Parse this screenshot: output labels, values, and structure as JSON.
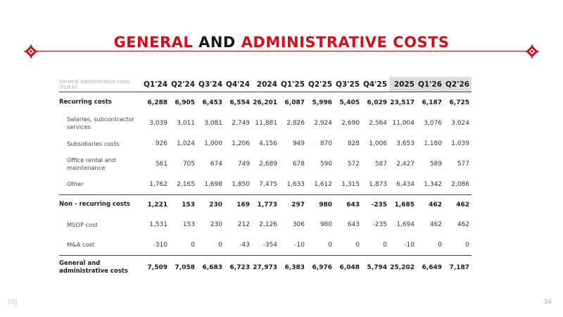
{
  "title": {
    "part1": "General",
    "part2": "and",
    "part3": "Administrative costs"
  },
  "table": {
    "header_label": "General administrative costs (PLN k)",
    "columns": [
      "Q1'24",
      "Q2'24",
      "Q3'24",
      "Q4'24",
      "2024",
      "Q1'25",
      "Q2'25",
      "Q3'25",
      "Q4'25",
      "2025",
      "Q1'26",
      "Q2'26"
    ],
    "shaded_columns": [
      9,
      10,
      11
    ],
    "rows": [
      {
        "label": "Recurring costs",
        "type": "group",
        "values": [
          "6,288",
          "6,905",
          "6,453",
          "6,554",
          "26,201",
          "6,087",
          "5,996",
          "5,405",
          "6,029",
          "23,517",
          "6,187",
          "6,725"
        ]
      },
      {
        "label": "Salaries, subcontractor services",
        "type": "sub",
        "values": [
          "3,039",
          "3,011",
          "3,081",
          "2,749",
          "11,881",
          "2,826",
          "2,924",
          "2,690",
          "2,564",
          "11,004",
          "3,076",
          "3,024"
        ]
      },
      {
        "label": "Subsidiaries costs",
        "type": "sub",
        "values": [
          "926",
          "1,024",
          "1,000",
          "1,206",
          "4,156",
          "949",
          "870",
          "828",
          "1,006",
          "3,653",
          "1,180",
          "1,039"
        ]
      },
      {
        "label": "Office rental and maintenance",
        "type": "sub",
        "values": [
          "561",
          "705",
          "674",
          "749",
          "2,689",
          "678",
          "590",
          "572",
          "587",
          "2,427",
          "589",
          "577"
        ]
      },
      {
        "label": "Other",
        "type": "sub",
        "values": [
          "1,762",
          "2,165",
          "1,698",
          "1,850",
          "7,475",
          "1,633",
          "1,612",
          "1,315",
          "1,873",
          "6,434",
          "1,342",
          "2,086"
        ]
      },
      {
        "label": "Non - recurring costs",
        "type": "group",
        "values": [
          "1,221",
          "153",
          "230",
          "169",
          "1,773",
          "297",
          "980",
          "643",
          "-235",
          "1,685",
          "462",
          "462"
        ]
      },
      {
        "label": "MSOP cost",
        "type": "sub",
        "values": [
          "1,531",
          "153",
          "230",
          "212",
          "2,126",
          "306",
          "980",
          "643",
          "-235",
          "1,694",
          "462",
          "462"
        ]
      },
      {
        "label": "M&A cost",
        "type": "sub",
        "values": [
          "-310",
          "0",
          "0",
          "-43",
          "-354",
          "-10",
          "0",
          "0",
          "0",
          "-10",
          "0",
          "0"
        ]
      },
      {
        "label": "General and administrative costs",
        "type": "total",
        "values": [
          "7,509",
          "7,058",
          "6,683",
          "6,723",
          "27,973",
          "6,383",
          "6,976",
          "6,048",
          "5,794",
          "25,202",
          "6,649",
          "7,187"
        ]
      }
    ]
  },
  "footer": {
    "logo": "MJ",
    "page_number": "34"
  },
  "colors": {
    "accent": "#d0101a",
    "shade": "#dedede"
  }
}
